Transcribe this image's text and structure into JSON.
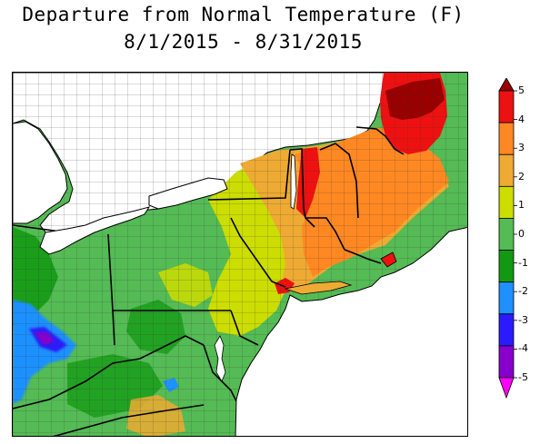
{
  "title": {
    "line1": "Departure from Normal Temperature (F)",
    "line2": "8/1/2015 - 8/31/2015"
  },
  "legend": {
    "colors": [
      "#ff00ff",
      "#8800cc",
      "#2a1aff",
      "#1e90ff",
      "#119911",
      "#55bb55",
      "#ccdd00",
      "#eeaa33",
      "#ff8822",
      "#ee1111",
      "#990000"
    ],
    "ticks": [
      "5",
      "4",
      "3",
      "2",
      "1",
      "0",
      "-1",
      "-2",
      "-3",
      "-4",
      "-5"
    ]
  }
}
